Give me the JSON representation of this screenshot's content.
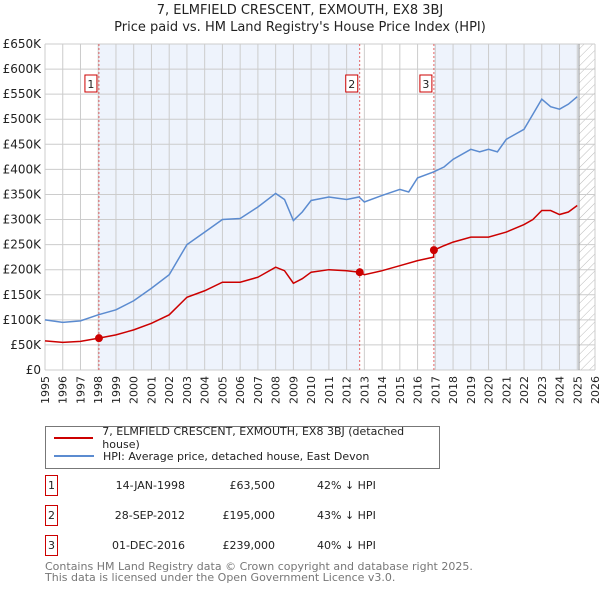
{
  "chart_data": {
    "type": "line",
    "title": "7, ELMFIELD CRESCENT, EXMOUTH, EX8 3BJ",
    "subtitle": "Price paid vs. HM Land Registry's House Price Index (HPI)",
    "xlim": [
      1995,
      2026
    ],
    "ylim": [
      0,
      650000
    ],
    "yticks": [
      0,
      50000,
      100000,
      150000,
      200000,
      250000,
      300000,
      350000,
      400000,
      450000,
      500000,
      550000,
      600000,
      650000
    ],
    "ytick_labels": [
      "£0",
      "£50K",
      "£100K",
      "£150K",
      "£200K",
      "£250K",
      "£300K",
      "£350K",
      "£400K",
      "£450K",
      "£500K",
      "£550K",
      "£600K",
      "£650K"
    ],
    "xticks": [
      1995,
      1996,
      1997,
      1998,
      1999,
      2000,
      2001,
      2002,
      2003,
      2004,
      2005,
      2006,
      2007,
      2008,
      2009,
      2010,
      2011,
      2012,
      2013,
      2014,
      2015,
      2016,
      2017,
      2018,
      2019,
      2020,
      2021,
      2022,
      2023,
      2024,
      2025,
      2026
    ],
    "grid": true,
    "series": [
      {
        "name": "7, ELMFIELD CRESCENT, EXMOUTH, EX8 3BJ (detached house)",
        "color": "#cc0000",
        "x": [
          1995,
          1996,
          1997,
          1998.04,
          1999,
          2000,
          2001,
          2002,
          2003,
          2004,
          2005,
          2006,
          2007,
          2008,
          2008.5,
          2009,
          2009.5,
          2010,
          2011,
          2012,
          2012.74,
          2013,
          2014,
          2015,
          2016,
          2016.9,
          2016.92,
          2017.5,
          2018,
          2019,
          2020,
          2021,
          2022,
          2022.5,
          2023,
          2023.5,
          2024,
          2024.5,
          2025
        ],
        "y": [
          58000,
          55000,
          57000,
          63500,
          70000,
          80000,
          93000,
          110000,
          145000,
          158000,
          175000,
          175000,
          185000,
          205000,
          198000,
          173000,
          182000,
          195000,
          200000,
          198000,
          195000,
          190000,
          198000,
          208000,
          218000,
          225000,
          239000,
          248000,
          255000,
          265000,
          265000,
          275000,
          290000,
          300000,
          318000,
          318000,
          310000,
          315000,
          328000
        ]
      },
      {
        "name": "HPI: Average price, detached house, East Devon",
        "color": "#5b8bd0",
        "x": [
          1995,
          1996,
          1997,
          1998,
          1999,
          2000,
          2001,
          2002,
          2003,
          2004,
          2005,
          2006,
          2007,
          2008,
          2008.5,
          2009,
          2009.5,
          2010,
          2011,
          2012,
          2012.7,
          2013,
          2014,
          2015,
          2015.5,
          2016,
          2016.9,
          2017.5,
          2018,
          2019,
          2019.5,
          2020,
          2020.5,
          2021,
          2022,
          2022.5,
          2023,
          2023.5,
          2024,
          2024.5,
          2025
        ],
        "y": [
          100000,
          95000,
          98000,
          110000,
          120000,
          138000,
          163000,
          190000,
          250000,
          275000,
          300000,
          302000,
          325000,
          352000,
          340000,
          298000,
          315000,
          338000,
          345000,
          340000,
          345000,
          335000,
          348000,
          360000,
          355000,
          383000,
          395000,
          405000,
          420000,
          440000,
          435000,
          440000,
          435000,
          460000,
          480000,
          510000,
          540000,
          525000,
          520000,
          530000,
          545000
        ]
      }
    ],
    "sales": [
      {
        "label": "1",
        "x": 1998.04,
        "price": 63500,
        "date": "14-JAN-1998",
        "price_text": "£63,500",
        "hpi": "42% ↓ HPI"
      },
      {
        "label": "2",
        "x": 2012.74,
        "price": 195000,
        "date": "28-SEP-2012",
        "price_text": "£195,000",
        "hpi": "43% ↓ HPI"
      },
      {
        "label": "3",
        "x": 2016.92,
        "price": 239000,
        "date": "01-DEC-2016",
        "price_text": "£239,000",
        "hpi": "40% ↓ HPI"
      }
    ],
    "forecast_start": 2025.1
  },
  "footer": [
    "Contains HM Land Registry data © Crown copyright and database right 2025.",
    "This data is licensed under the Open Government Licence v3.0."
  ]
}
